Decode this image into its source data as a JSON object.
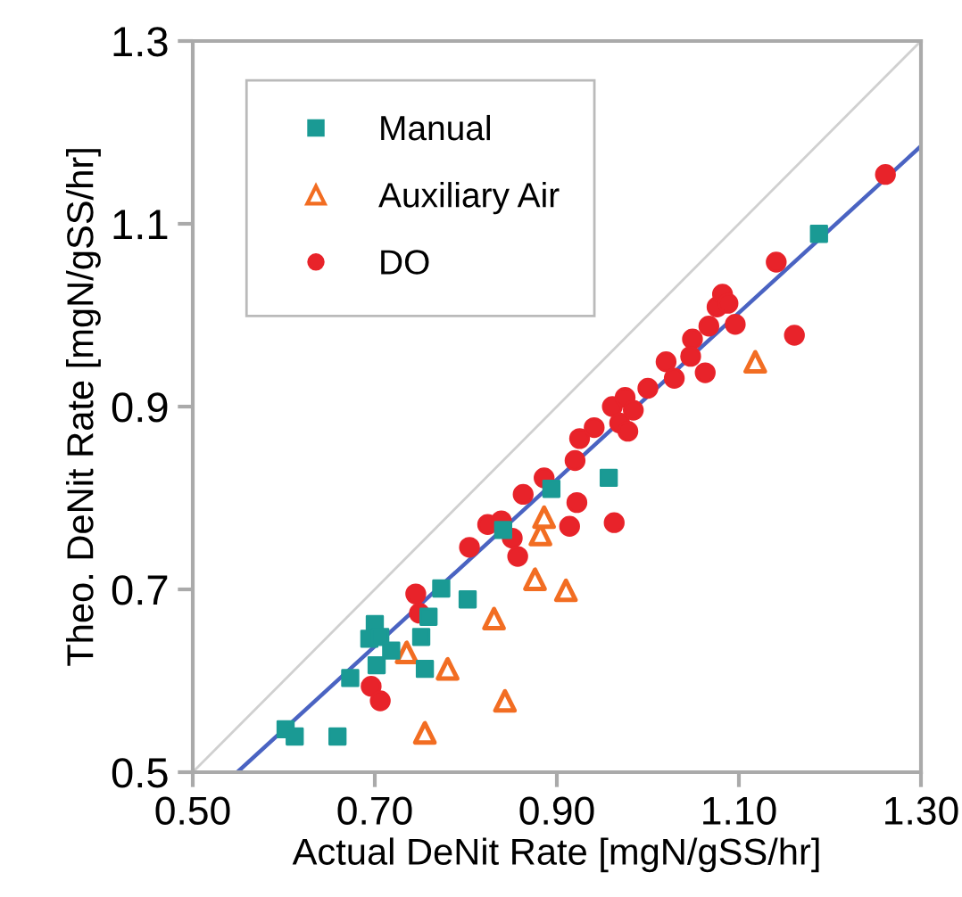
{
  "chart_data": {
    "type": "scatter",
    "xlabel": "Actual DeNit Rate [mgN/gSS/hr]",
    "ylabel": "Theo. DeNit Rate [mgN/gSS/hr]",
    "xlim": [
      0.5,
      1.3
    ],
    "ylim": [
      0.5,
      1.3
    ],
    "xticks": [
      {
        "value": 0.5,
        "label": "0.50"
      },
      {
        "value": 0.7,
        "label": "0.70"
      },
      {
        "value": 0.9,
        "label": "0.90"
      },
      {
        "value": 1.1,
        "label": "1.10"
      },
      {
        "value": 1.3,
        "label": "1.30"
      }
    ],
    "yticks": [
      0.5,
      0.7,
      0.9,
      1.1,
      1.3
    ],
    "grid": false,
    "legend": "top left",
    "series": [
      {
        "type": "line",
        "color": "#d0d0d0",
        "x": [
          0.5,
          1.3
        ],
        "values": [
          0.5,
          1.3
        ]
      },
      {
        "type": "line",
        "color": "#4a63c2",
        "x": [
          0.549,
          1.3
        ],
        "values": [
          0.5,
          1.185
        ]
      },
      {
        "name": "Manual",
        "color": "#1a9a94",
        "marker": "square",
        "x": [
          0.602,
          0.612,
          0.659,
          0.673,
          0.7,
          0.694,
          0.706,
          0.718,
          0.702,
          0.751,
          0.755,
          0.759,
          0.773,
          0.802,
          0.841,
          0.894,
          0.957,
          1.188
        ],
        "values": [
          0.547,
          0.539,
          0.539,
          0.603,
          0.662,
          0.646,
          0.648,
          0.633,
          0.617,
          0.648,
          0.613,
          0.67,
          0.701,
          0.689,
          0.765,
          0.81,
          0.822,
          1.089
        ]
      },
      {
        "name": "Auxiliary Air",
        "color": "#f26d22",
        "marker": "triangle",
        "x": [
          0.735,
          0.78,
          0.843,
          0.755,
          0.831,
          0.876,
          0.882,
          0.886,
          0.91,
          1.118
        ],
        "values": [
          0.631,
          0.613,
          0.578,
          0.543,
          0.668,
          0.711,
          0.76,
          0.779,
          0.699,
          0.949
        ]
      },
      {
        "name": "DO",
        "color": "#e8232a",
        "marker": "circle",
        "x": [
          0.696,
          0.706,
          0.745,
          0.749,
          0.804,
          0.824,
          0.839,
          0.851,
          0.857,
          0.863,
          0.886,
          0.922,
          0.914,
          0.963,
          0.92,
          0.925,
          0.941,
          0.961,
          0.975,
          0.969,
          0.978,
          0.984,
          1.0,
          1.02,
          1.029,
          1.049,
          1.047,
          1.063,
          1.067,
          1.076,
          1.082,
          1.088,
          1.096,
          1.161,
          1.141,
          1.261
        ],
        "values": [
          0.594,
          0.578,
          0.695,
          0.674,
          0.746,
          0.771,
          0.775,
          0.756,
          0.736,
          0.804,
          0.822,
          0.795,
          0.769,
          0.773,
          0.841,
          0.865,
          0.877,
          0.9,
          0.91,
          0.882,
          0.873,
          0.896,
          0.92,
          0.949,
          0.931,
          0.974,
          0.955,
          0.937,
          0.988,
          1.009,
          1.023,
          1.013,
          0.99,
          0.978,
          1.058,
          1.154
        ]
      }
    ]
  }
}
